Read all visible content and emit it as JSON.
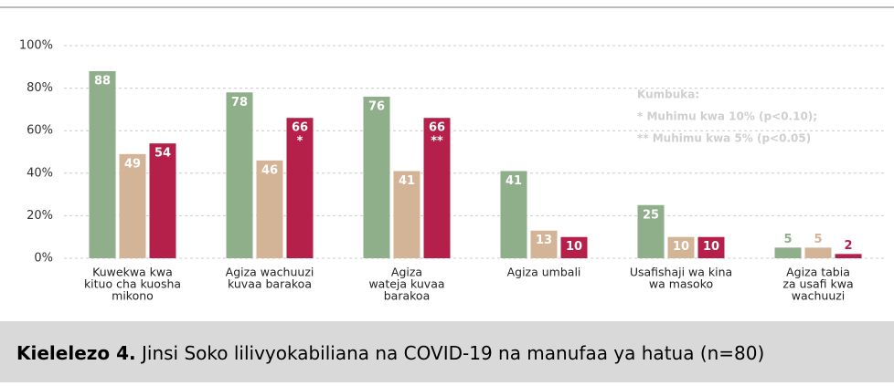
{
  "chart_data": {
    "type": "bar",
    "categories": [
      [
        "Kuwekwa kwa",
        "kituo cha kuosha",
        "mikono"
      ],
      [
        "Agiza wachuuzi",
        "kuvaa barakoa"
      ],
      [
        "Agiza",
        "wateja kuvaa",
        "barakoa"
      ],
      [
        "Agiza umbali"
      ],
      [
        "Usafishaji wa kina",
        "wa masoko"
      ],
      [
        "Agiza tabia",
        "za usafi kwa",
        "wachuuzi"
      ]
    ],
    "series": [
      {
        "color": "#8fae8a",
        "values": [
          88,
          78,
          76,
          41,
          25,
          5
        ]
      },
      {
        "color": "#d4b496",
        "values": [
          49,
          46,
          41,
          13,
          10,
          5
        ]
      },
      {
        "color": "#b5204a",
        "values": [
          54,
          66,
          66,
          10,
          10,
          2
        ],
        "annotations": [
          null,
          "*",
          "**",
          null,
          null,
          null
        ]
      }
    ],
    "ylim": [
      0,
      100
    ],
    "yticks": [
      {
        "value": 0,
        "label": "0%"
      },
      {
        "value": 20,
        "label": "20%"
      },
      {
        "value": 40,
        "label": "40%"
      },
      {
        "value": 60,
        "label": "60%"
      },
      {
        "value": 80,
        "label": "80%"
      },
      {
        "value": 100,
        "label": "100%"
      }
    ],
    "grid": true,
    "note": [
      "Kumbuka:",
      "* Muhimu kwa 10% (p<0.10);",
      "** Muhimu kwa 5% (p<0.05)"
    ],
    "caption": {
      "label": "Kielelezo 4.",
      "text": " Jinsi Soko lilivyokabiliana na COVID-19 na manufaa ya hatua (n=80)"
    }
  }
}
